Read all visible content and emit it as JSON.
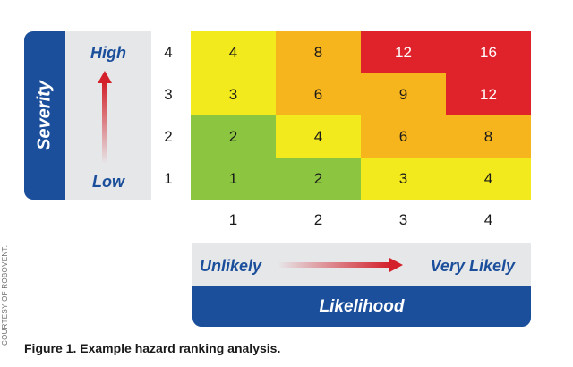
{
  "severity": {
    "title": "Severity",
    "high_label": "High",
    "low_label": "Low",
    "levels": [
      "4",
      "3",
      "2",
      "1"
    ]
  },
  "likelihood": {
    "title": "Likelihood",
    "unlikely_label": "Unlikely",
    "very_likely_label": "Very Likely",
    "levels": [
      "1",
      "2",
      "3",
      "4"
    ]
  },
  "matrix": {
    "rows": [
      [
        "4",
        "8",
        "12",
        "16"
      ],
      [
        "3",
        "6",
        "9",
        "12"
      ],
      [
        "2",
        "4",
        "6",
        "8"
      ],
      [
        "1",
        "2",
        "3",
        "4"
      ]
    ]
  },
  "colors": {
    "blue": "#1b4f9b",
    "green": "#8cc540",
    "yellow": "#f2ea1c",
    "orange": "#f6b41d",
    "red": "#e0232b",
    "arrow_red": "#d3202a"
  },
  "credit": "COURTESY OF ROBOVENT.",
  "caption": "Figure 1. Example hazard ranking analysis."
}
